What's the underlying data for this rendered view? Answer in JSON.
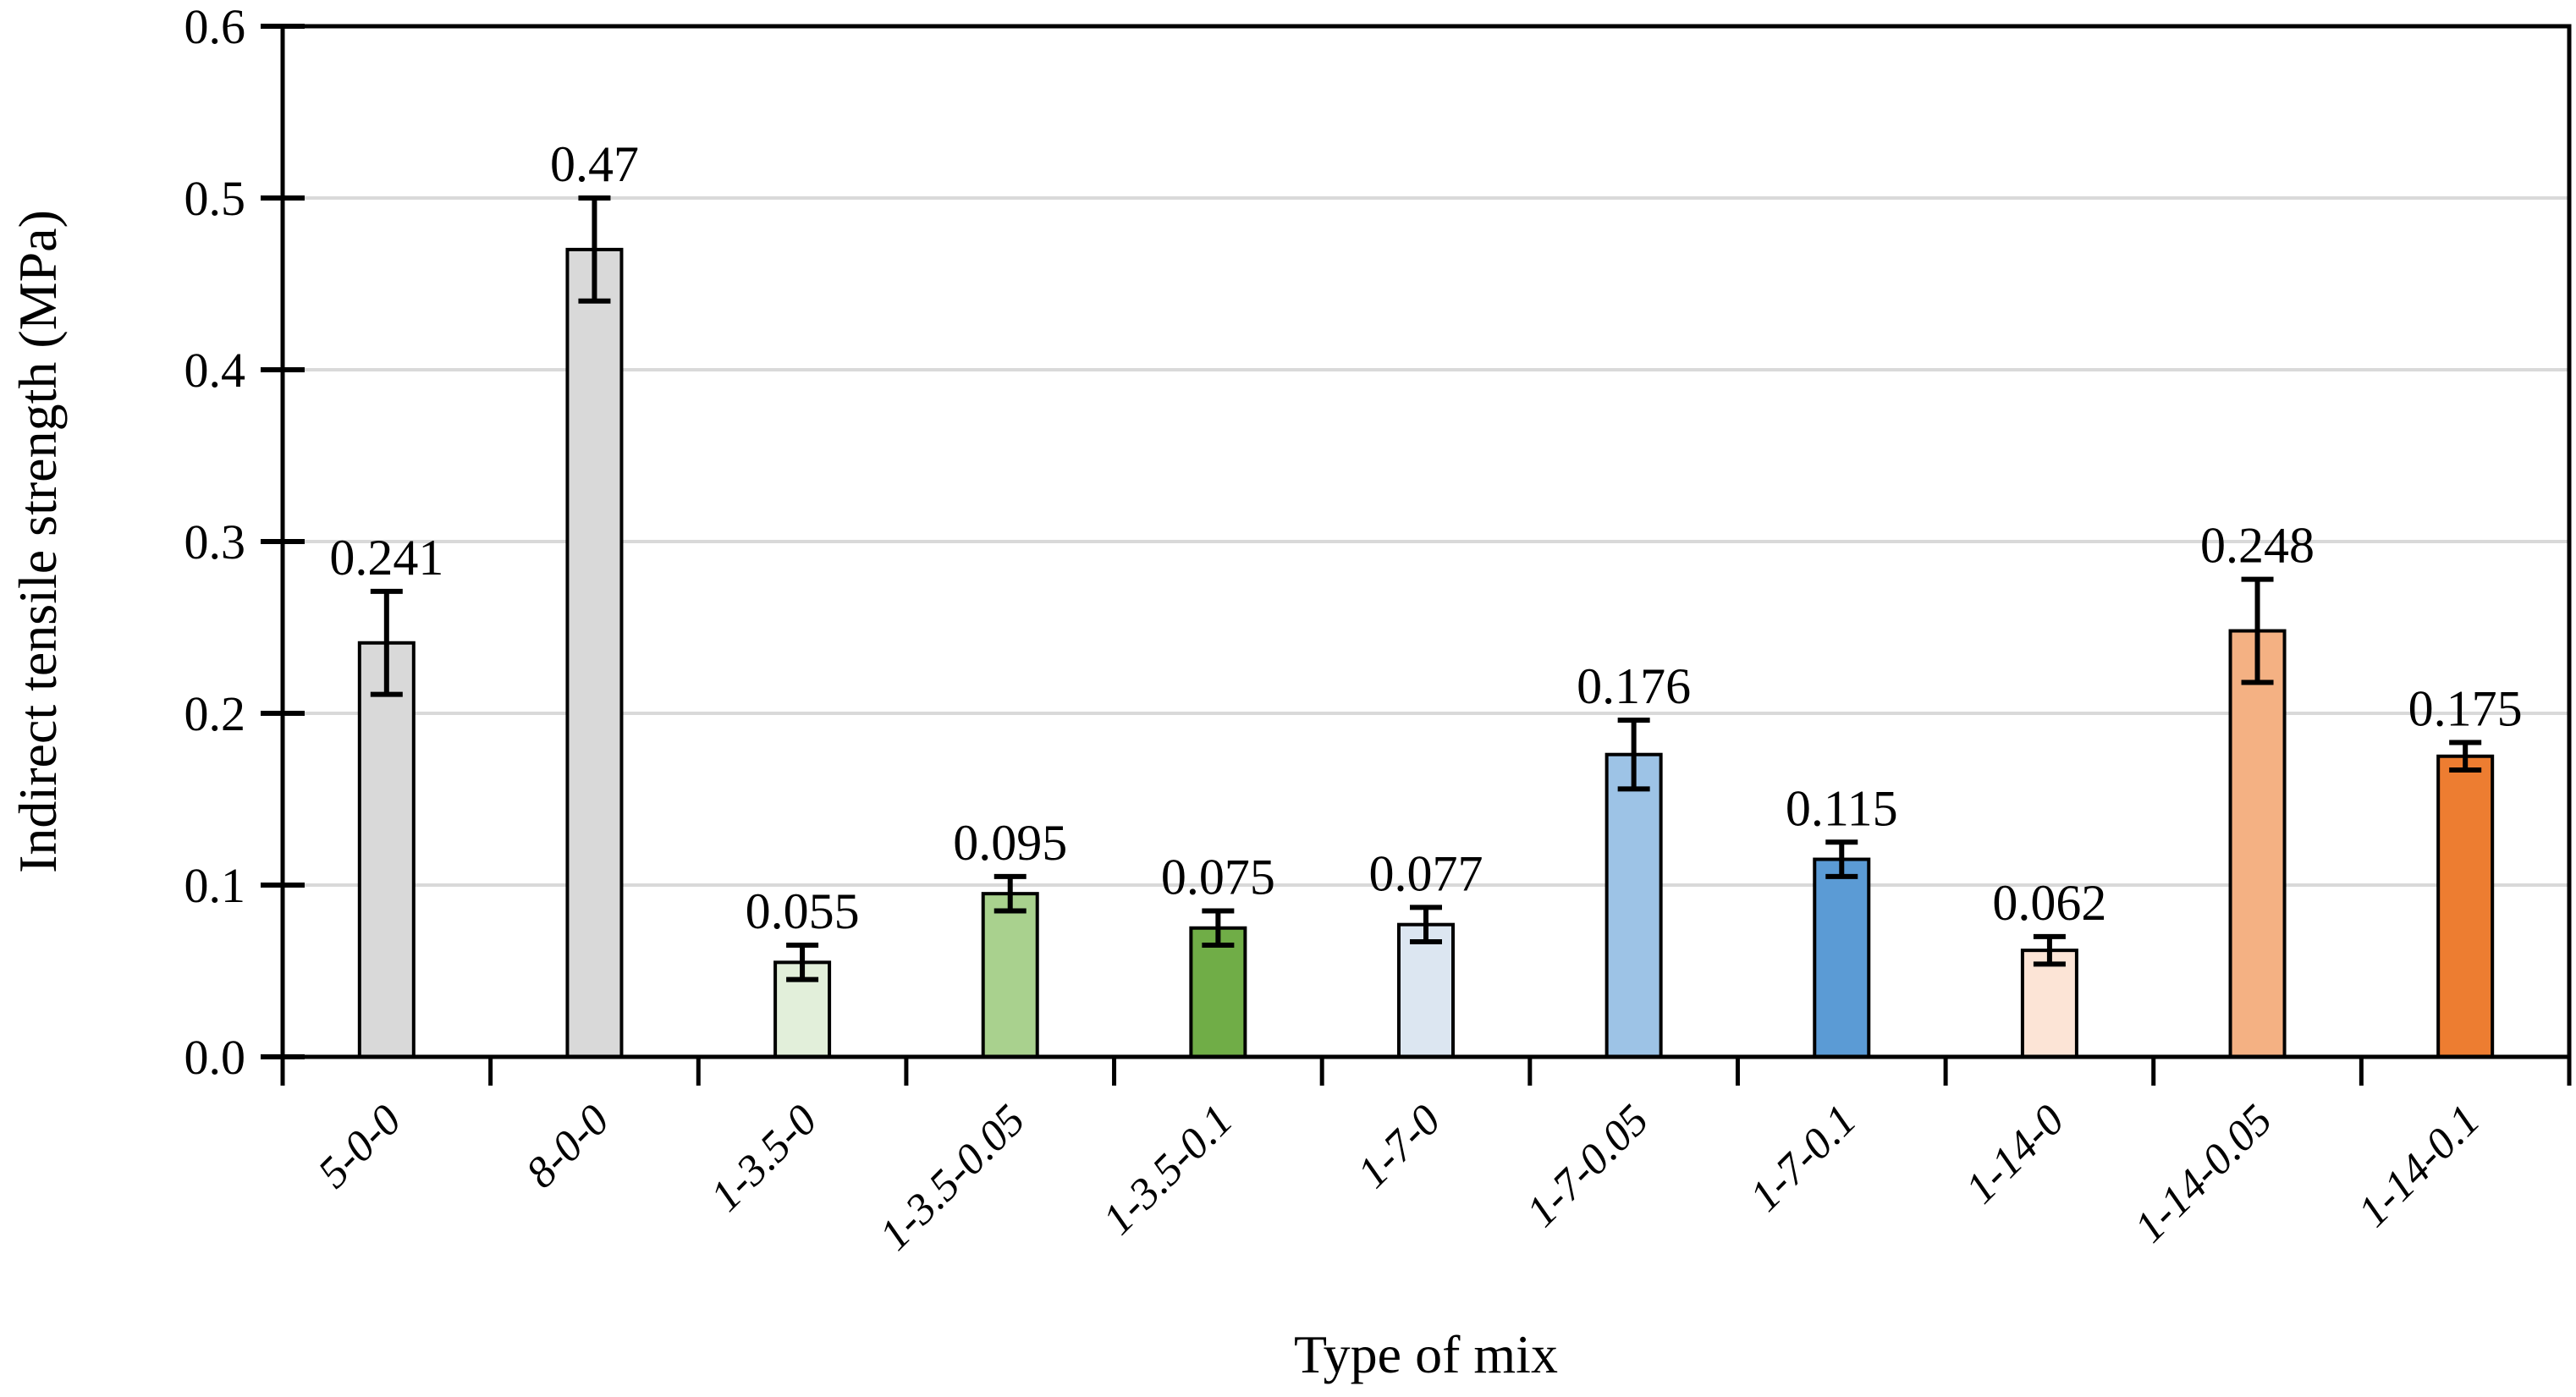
{
  "figure": {
    "background": "#ffffff"
  },
  "chart_data": {
    "type": "bar",
    "title": "",
    "xlabel": "Type of mix",
    "ylabel": "Indirect tensile strength (MPa)",
    "categories": [
      "5-0-0",
      "8-0-0",
      "1-3.5-0",
      "1-3.5-0.05",
      "1-3.5-0.1",
      "1-7-0",
      "1-7-0.05",
      "1-7-0.1",
      "1-14-0",
      "1-14-0.05",
      "1-14-0.1"
    ],
    "values": [
      0.241,
      0.47,
      0.055,
      0.095,
      0.075,
      0.077,
      0.176,
      0.115,
      0.062,
      0.248,
      0.175
    ],
    "value_labels": [
      "0.241",
      "0.47",
      "0.055",
      "0.095",
      "0.075",
      "0.077",
      "0.176",
      "0.115",
      "0.062",
      "0.248",
      "0.175"
    ],
    "error_bars": [
      0.03,
      0.03,
      0.01,
      0.01,
      0.01,
      0.01,
      0.02,
      0.01,
      0.008,
      0.03,
      0.008
    ],
    "bar_colors": [
      "#d9d9d9",
      "#d9d9d9",
      "#e2efda",
      "#a9d18e",
      "#70ad47",
      "#dce6f1",
      "#9dc3e6",
      "#5b9bd5",
      "#fce4d6",
      "#f4b183",
      "#ed7d31"
    ],
    "bar_border_color": "#000000",
    "error_bar_color": "#000000",
    "label_color": "#000000",
    "ylim": [
      0,
      0.6
    ],
    "ytick_step": 0.1,
    "ytick_labels": [
      "0.0",
      "0.1",
      "0.2",
      "0.3",
      "0.4",
      "0.5",
      "0.6"
    ],
    "grid": "horizontal",
    "gridline_color": "#d9d9d9",
    "axis_color": "#000000",
    "plot_border": true,
    "legend": "none",
    "category_label_rotation_deg": -45,
    "category_label_style": "italic"
  }
}
